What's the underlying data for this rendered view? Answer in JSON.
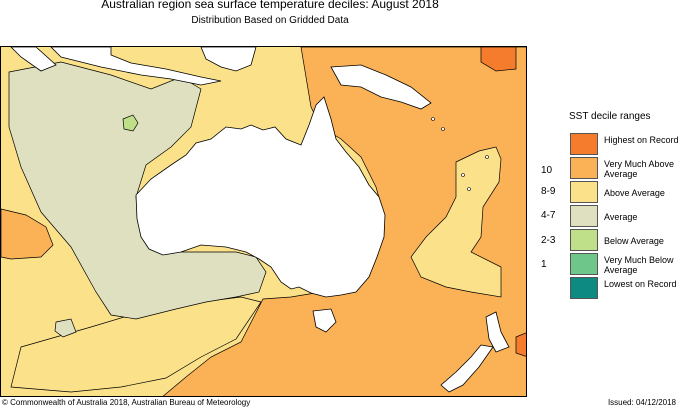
{
  "title": "Australian region sea surface temperature deciles:  August 2018",
  "subtitle": "Distribution Based on Gridded Data",
  "legend": {
    "title": "SST decile ranges",
    "items": [
      {
        "code": "",
        "label": "Highest on Record",
        "color": "#f57c2c"
      },
      {
        "code": "10",
        "label": "Very Much Above Average",
        "color": "#fbb257"
      },
      {
        "code": "8-9",
        "label": "Above Average",
        "color": "#fbe28a"
      },
      {
        "code": "4-7",
        "label": "Average",
        "color": "#dfe0bf"
      },
      {
        "code": "2-3",
        "label": "Below Average",
        "color": "#bfe088"
      },
      {
        "code": "1",
        "label": "Very Much Below Average",
        "color": "#6fc68a"
      },
      {
        "code": "",
        "label": "Lowest on Record",
        "color": "#0d8a82"
      }
    ]
  },
  "footer": {
    "copyright": "© Commonwealth of Australia 2018, Australian Bureau of Meteorology",
    "issued": "Issued: 04/12/2018"
  }
}
